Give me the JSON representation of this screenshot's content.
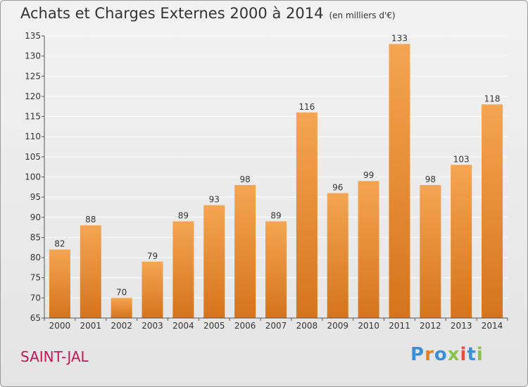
{
  "header": {
    "title": "Achats et Charges Externes 2000 à 2014",
    "unit": "(en milliers d'€)"
  },
  "footer": {
    "commune": "SAINT-JAL",
    "logo_text": "Proxiti"
  },
  "colors": {
    "bar_top": "#f5a552",
    "bar_bottom": "#d5741c",
    "commune": "#c2185b",
    "logo_letters": [
      "#3a8fd6",
      "#e67e22",
      "#3a8fd6",
      "#8bc34a",
      "#e74c3c",
      "#3a8fd6",
      "#8bc34a"
    ]
  },
  "chart_data": {
    "type": "bar",
    "title": "Achats et Charges Externes 2000 à 2014",
    "categories": [
      "2000",
      "2001",
      "2002",
      "2003",
      "2004",
      "2005",
      "2006",
      "2007",
      "2008",
      "2009",
      "2010",
      "2011",
      "2012",
      "2013",
      "2014"
    ],
    "values": [
      82,
      88,
      70,
      79,
      89,
      93,
      98,
      89,
      116,
      96,
      99,
      133,
      98,
      103,
      118
    ],
    "ylim": [
      65,
      135
    ],
    "yticks": [
      65,
      70,
      75,
      80,
      85,
      90,
      95,
      100,
      105,
      110,
      115,
      120,
      125,
      130,
      135
    ],
    "grid": true,
    "legend": "none"
  }
}
